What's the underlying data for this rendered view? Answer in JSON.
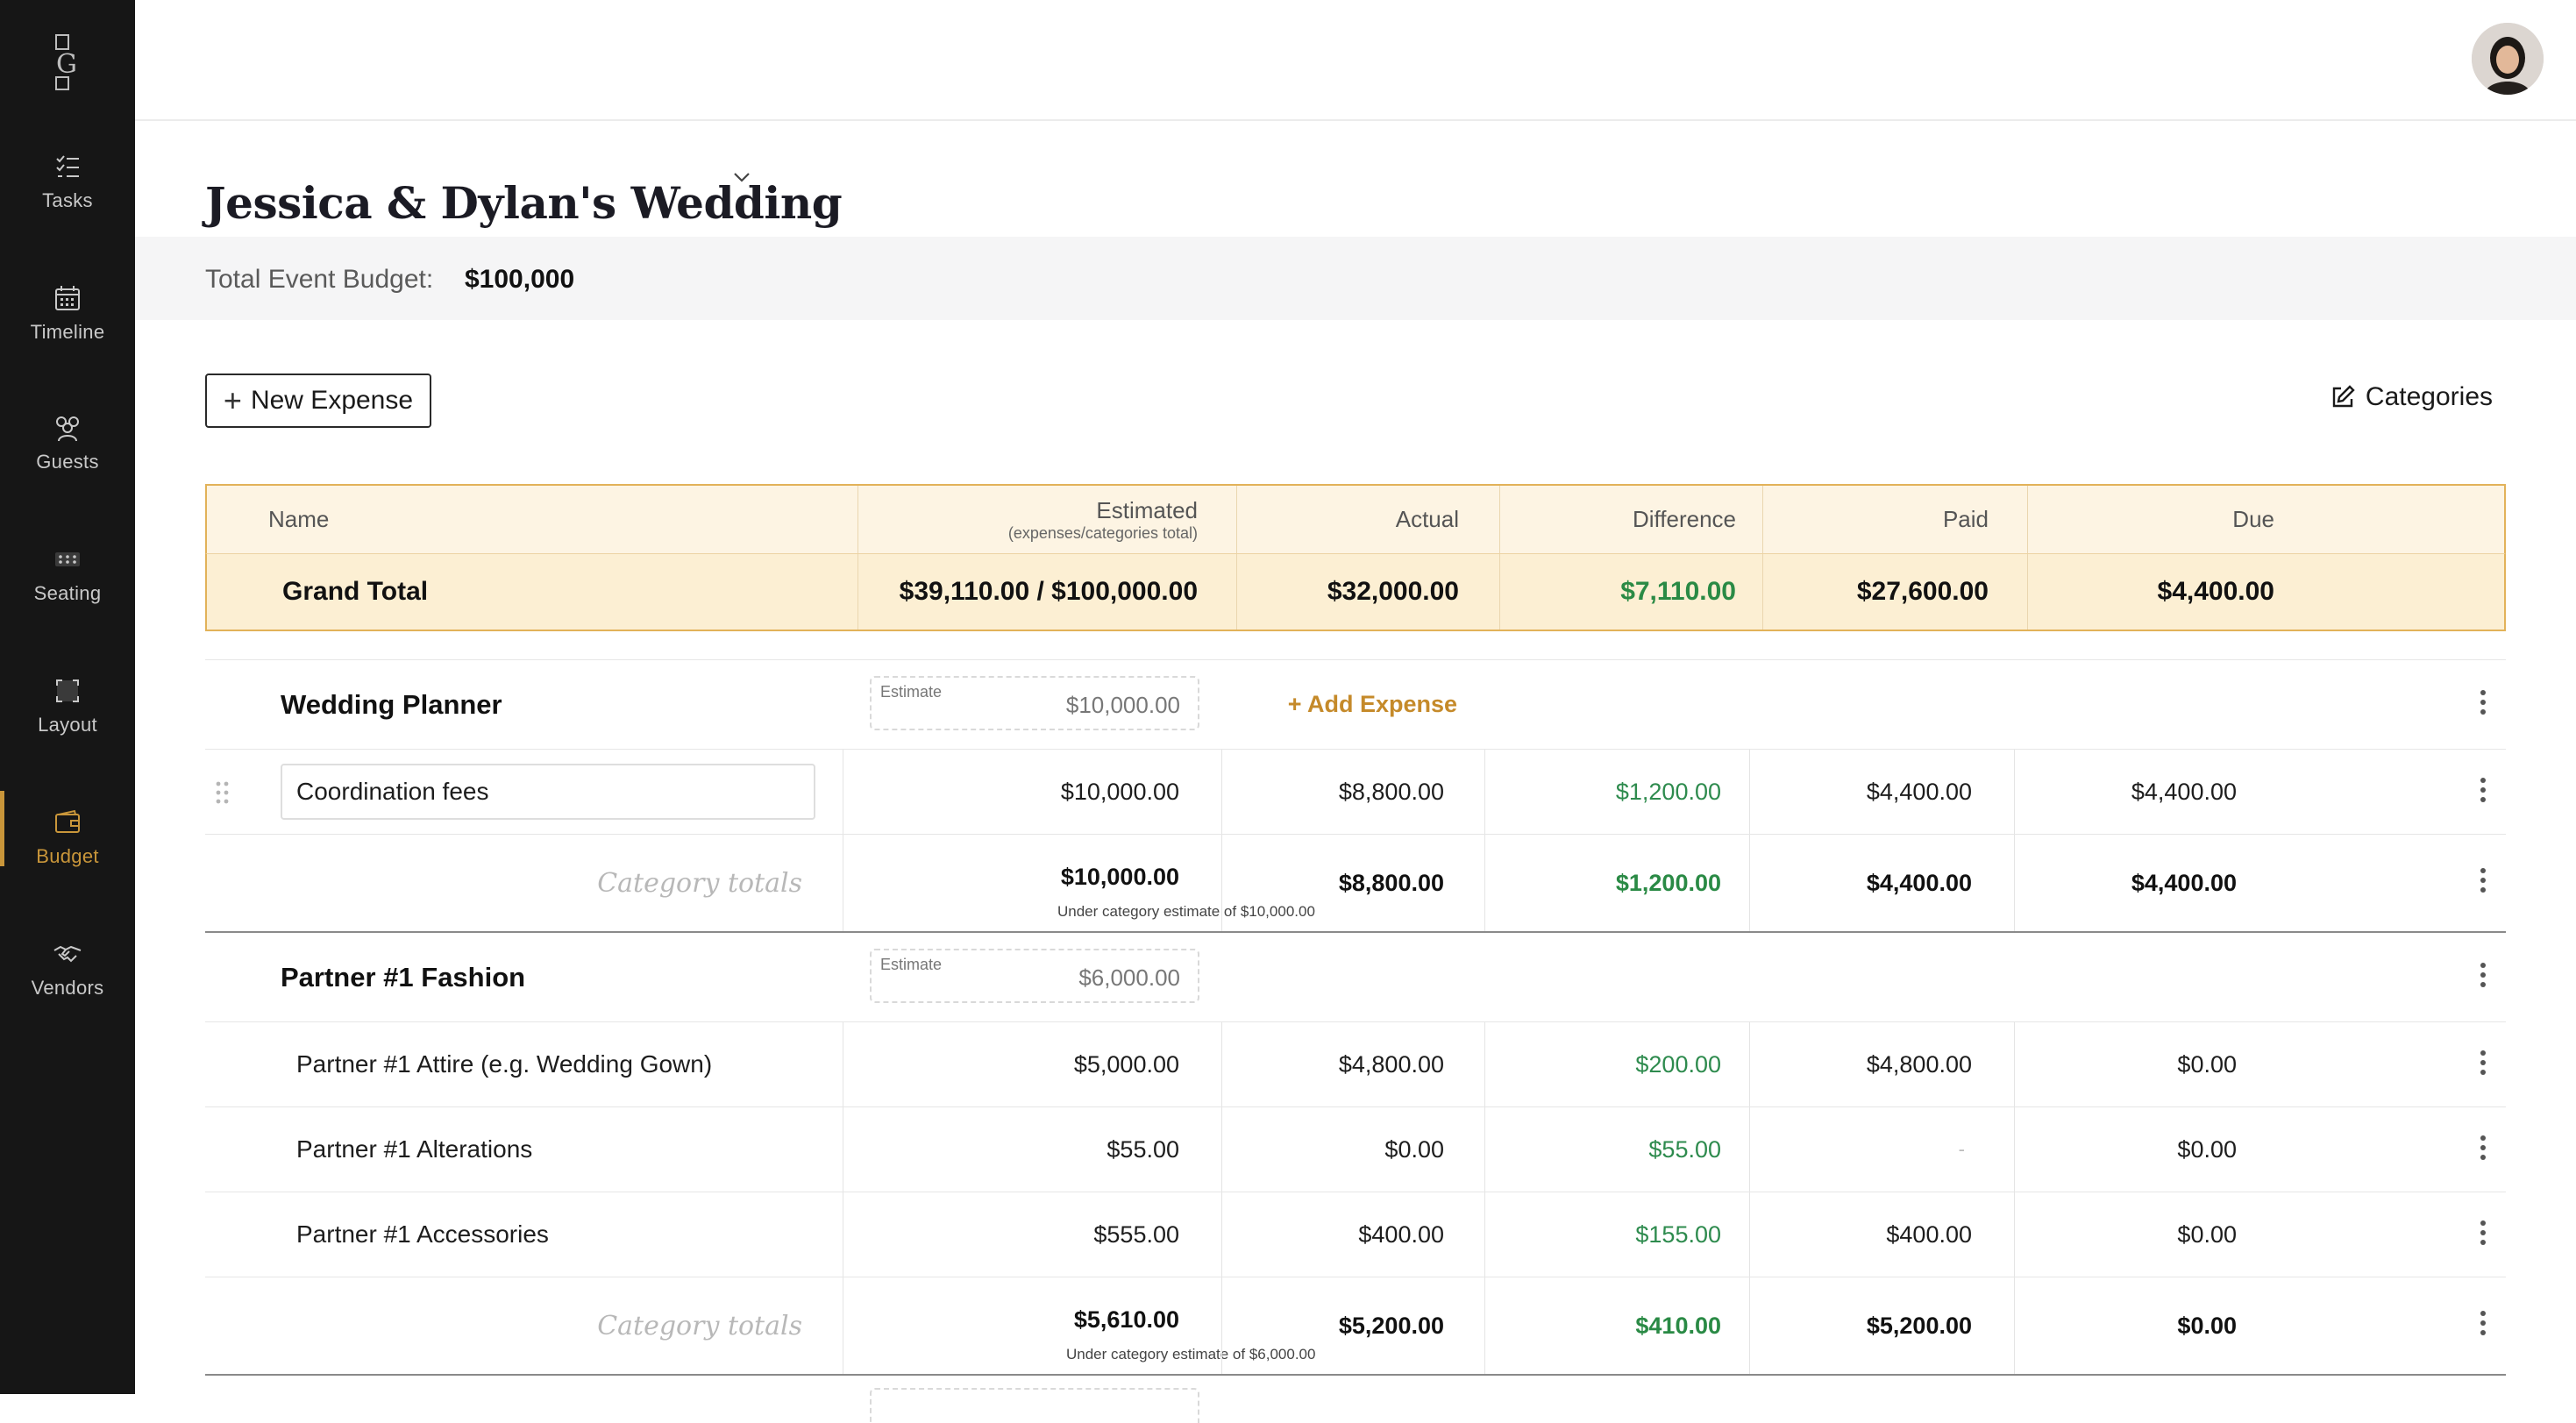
{
  "app": {
    "nav": [
      {
        "id": "tasks",
        "label": "Tasks",
        "icon": "tasks-icon"
      },
      {
        "id": "timeline",
        "label": "Timeline",
        "icon": "calendar-icon"
      },
      {
        "id": "guests",
        "label": "Guests",
        "icon": "guests-icon"
      },
      {
        "id": "seating",
        "label": "Seating",
        "icon": "seating-icon"
      },
      {
        "id": "layout",
        "label": "Layout",
        "icon": "layout-icon"
      },
      {
        "id": "budget",
        "label": "Budget",
        "icon": "wallet-icon",
        "active": true
      },
      {
        "id": "vendors",
        "label": "Vendors",
        "icon": "handshake-icon"
      }
    ],
    "accent_color": "#c9963a",
    "sidebar_color": "#161616"
  },
  "event": {
    "title": "Jessica & Dylan's Wedding"
  },
  "budget": {
    "total_label": "Total Event Budget:",
    "total_value": "$100,000"
  },
  "toolbar": {
    "new_expense_label": "New Expense",
    "categories_label": "Categories"
  },
  "table": {
    "headers": {
      "name": "Name",
      "estimated": "Estimated",
      "estimated_sub": "(expenses/categories total)",
      "actual": "Actual",
      "difference": "Difference",
      "paid": "Paid",
      "due": "Due"
    },
    "grand_total": {
      "label": "Grand Total",
      "estimated": "$39,110.00 / $100,000.00",
      "actual": "$32,000.00",
      "difference": "$7,110.00",
      "paid": "$27,600.00",
      "due": "$4,400.00"
    },
    "categories": [
      {
        "name": "Wedding Planner",
        "estimate_label": "Estimate",
        "estimate_value": "$10,000.00",
        "add_expense_label": "+ Add Expense",
        "items": [
          {
            "name": "Coordination fees",
            "estimated": "$10,000.00",
            "actual": "$8,800.00",
            "difference": "$1,200.00",
            "paid": "$4,400.00",
            "due": "$4,400.00"
          }
        ],
        "totals": {
          "label": "Category totals",
          "estimated": "$10,000.00",
          "note": "Under category estimate of $10,000.00",
          "actual": "$8,800.00",
          "difference": "$1,200.00",
          "paid": "$4,400.00",
          "due": "$4,400.00"
        }
      },
      {
        "name": "Partner #1 Fashion",
        "estimate_label": "Estimate",
        "estimate_value": "$6,000.00",
        "items": [
          {
            "name": "Partner #1 Attire (e.g. Wedding Gown)",
            "estimated": "$5,000.00",
            "actual": "$4,800.00",
            "difference": "$200.00",
            "paid": "$4,800.00",
            "due": "$0.00"
          },
          {
            "name": "Partner #1 Alterations",
            "estimated": "$55.00",
            "actual": "$0.00",
            "difference": "$55.00",
            "paid": "-",
            "due": "$0.00"
          },
          {
            "name": "Partner #1 Accessories",
            "estimated": "$555.00",
            "actual": "$400.00",
            "difference": "$155.00",
            "paid": "$400.00",
            "due": "$0.00"
          }
        ],
        "totals": {
          "label": "Category totals",
          "estimated": "$5,610.00",
          "note": "Under category estimate of $6,000.00",
          "actual": "$5,200.00",
          "difference": "$410.00",
          "paid": "$5,200.00",
          "due": "$0.00"
        }
      }
    ]
  }
}
